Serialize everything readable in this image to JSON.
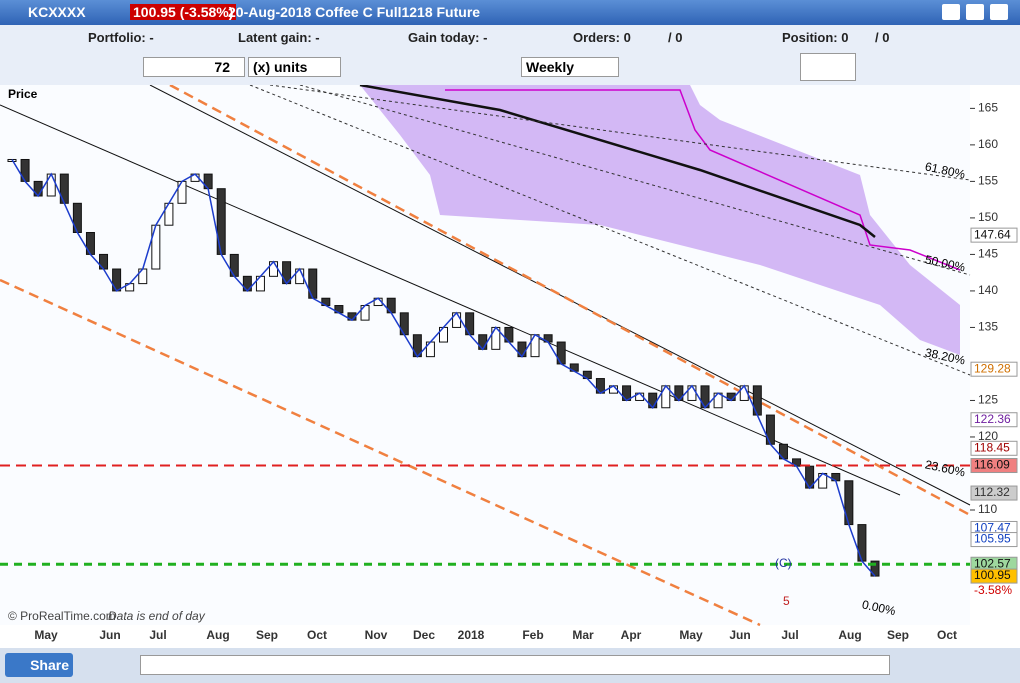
{
  "title_bar": {
    "symbol": "KCXXXX",
    "price": "100.95 (-3.58%)",
    "description": "20-Aug-2018 Coffee C Full1218 Future"
  },
  "info_bar": {
    "portfolio": "Portfolio: -",
    "latent_gain": "Latent gain: -",
    "gain_today": "Gain today: -",
    "orders": "Orders: 0",
    "orders_total": "/ 0",
    "position": "Position: 0",
    "position_total": "/ 0"
  },
  "toolbar": {
    "quantity": "72",
    "units": "(x) units",
    "period": "Weekly"
  },
  "chart": {
    "panel_label": "Price",
    "ylim": [
      94.25,
      168.2
    ],
    "yticks": [
      110,
      120,
      125,
      135,
      140,
      145,
      150,
      155,
      160,
      165
    ],
    "months": [
      "May",
      "Jun",
      "Jul",
      "Aug",
      "Sep",
      "Oct",
      "Nov",
      "Dec",
      "2018",
      "Feb",
      "Mar",
      "Apr",
      "May",
      "Jun",
      "Jul",
      "Aug",
      "Sep",
      "Oct"
    ],
    "closes": [
      158,
      155,
      153,
      156,
      152,
      148,
      145,
      143,
      140,
      141,
      143,
      149,
      152,
      155,
      156,
      154,
      145,
      142,
      140,
      142,
      144,
      141,
      143,
      139,
      138,
      137,
      136,
      138,
      139,
      137,
      134,
      131,
      133,
      135,
      137,
      134,
      132,
      135,
      133,
      131,
      134,
      133,
      130,
      129,
      128,
      126,
      127,
      125,
      126,
      124,
      127,
      125,
      127,
      124,
      126,
      125,
      127,
      123,
      119,
      117,
      116,
      113,
      115,
      114,
      108,
      103,
      100.95
    ],
    "price_labels": [
      147.64,
      129.28,
      122.36,
      118.45,
      116.09,
      112.32,
      107.47,
      105.95,
      102.57,
      100.95
    ],
    "change_label": "-3.58%",
    "fib_labels": [
      "61.80%",
      "50.00%",
      "38.20%",
      "23.60%",
      "0.00%"
    ],
    "wave_labels": [
      "(C)",
      "5"
    ],
    "copyright": "© ProRealTime.com",
    "note": "Data is end of day"
  },
  "status_bar": {
    "share": "Share"
  }
}
